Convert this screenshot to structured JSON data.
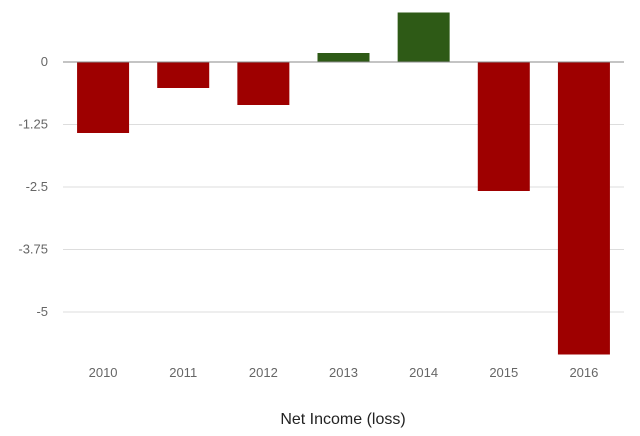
{
  "chart_data": {
    "type": "bar",
    "title": "",
    "xlabel": "Net Income (loss)",
    "ylabel": "",
    "categories": [
      "2010",
      "2011",
      "2012",
      "2013",
      "2014",
      "2015",
      "2016"
    ],
    "values": [
      -1.42,
      -0.52,
      -0.86,
      0.18,
      0.99,
      -2.58,
      -5.85
    ],
    "ylim": [
      -5.85,
      1.0
    ],
    "yticks": [
      0,
      -1.25,
      -2.5,
      -3.75,
      -5
    ],
    "ytick_labels": [
      "0",
      "-1.25",
      "-2.5",
      "-3.75",
      "-5"
    ],
    "grid": true,
    "colors": {
      "positive": "#2e5a16",
      "negative": "#9e0000",
      "grid": "#dddddd",
      "zero_line": "#888888"
    }
  }
}
